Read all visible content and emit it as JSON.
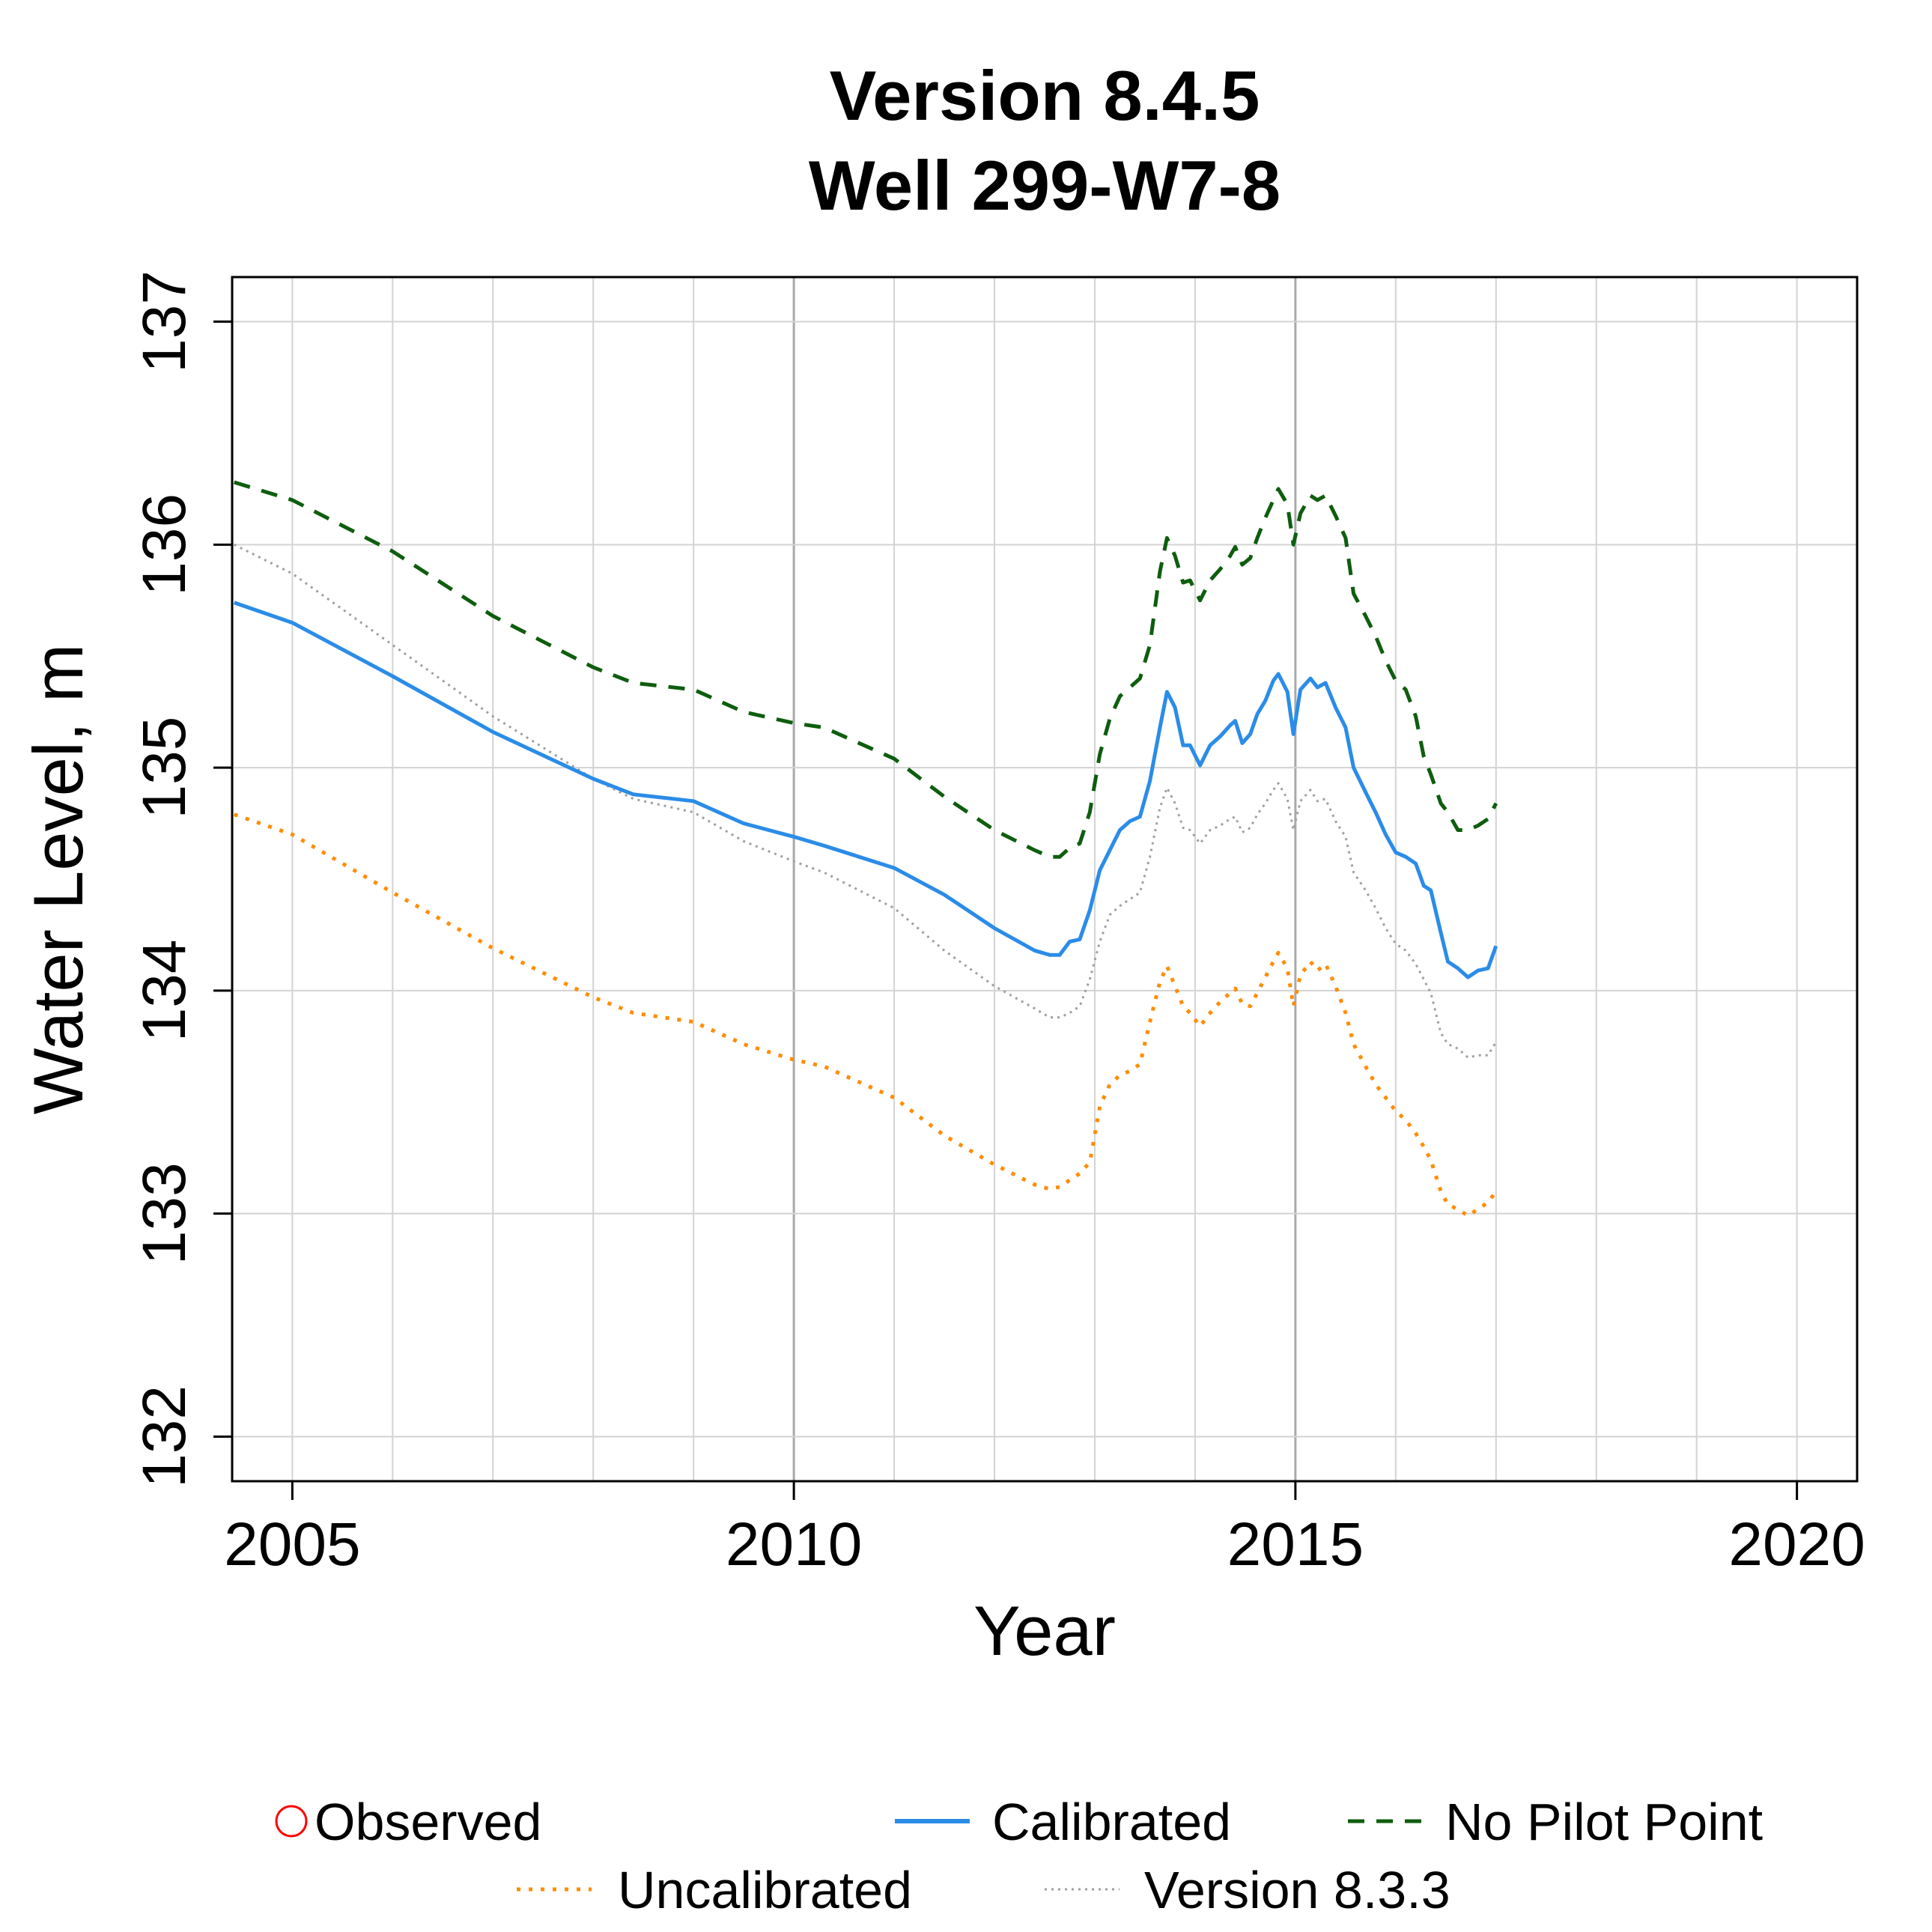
{
  "chart_data": {
    "type": "line",
    "title": "Version 8.4.5",
    "subtitle": "Well 299-W7-8",
    "xlabel": "Year",
    "ylabel": "Water Level, m",
    "xlim": [
      2004.4,
      2020.6
    ],
    "ylim": [
      131.8,
      137.2
    ],
    "x_ticks": [
      "2005",
      "2010",
      "2015",
      "2020"
    ],
    "y_ticks": [
      "132",
      "133",
      "134",
      "135",
      "136",
      "137"
    ],
    "grid": true,
    "legend_position": "bottom",
    "colors": {
      "observed": "#ff0000",
      "calibrated": "#2b8ce8",
      "no_pilot_point": "#0f5d0f",
      "uncalibrated": "#ff8c00",
      "version_833": "#a0a0a0",
      "grid": "#d3d3d3",
      "grid_major": "#a9a9a9"
    },
    "legend": {
      "observed": "Observed",
      "calibrated": "Calibrated",
      "no_pilot_point": "No Pilot Point",
      "uncalibrated": "Uncalibrated",
      "version_833": "Version 8.3.3"
    },
    "series": [
      {
        "key": "calibrated",
        "name": "Calibrated",
        "style": "solid",
        "points": [
          [
            2004.42,
            135.74
          ],
          [
            2005.0,
            135.65
          ],
          [
            2006.0,
            135.41
          ],
          [
            2007.0,
            135.16
          ],
          [
            2008.0,
            134.95
          ],
          [
            2008.4,
            134.88
          ],
          [
            2009.0,
            134.85
          ],
          [
            2009.5,
            134.75
          ],
          [
            2010.0,
            134.69
          ],
          [
            2010.3,
            134.65
          ],
          [
            2011.0,
            134.55
          ],
          [
            2011.5,
            134.43
          ],
          [
            2012.0,
            134.28
          ],
          [
            2012.4,
            134.18
          ],
          [
            2012.55,
            134.16
          ],
          [
            2012.65,
            134.16
          ],
          [
            2012.75,
            134.22
          ],
          [
            2012.85,
            134.23
          ],
          [
            2012.95,
            134.36
          ],
          [
            2013.05,
            134.54
          ],
          [
            2013.15,
            134.63
          ],
          [
            2013.25,
            134.72
          ],
          [
            2013.35,
            134.76
          ],
          [
            2013.45,
            134.78
          ],
          [
            2013.55,
            134.94
          ],
          [
            2013.65,
            135.18
          ],
          [
            2013.72,
            135.34
          ],
          [
            2013.8,
            135.27
          ],
          [
            2013.88,
            135.1
          ],
          [
            2013.95,
            135.1
          ],
          [
            2014.05,
            135.01
          ],
          [
            2014.15,
            135.1
          ],
          [
            2014.25,
            135.14
          ],
          [
            2014.35,
            135.19
          ],
          [
            2014.4,
            135.21
          ],
          [
            2014.47,
            135.11
          ],
          [
            2014.55,
            135.15
          ],
          [
            2014.62,
            135.24
          ],
          [
            2014.7,
            135.3
          ],
          [
            2014.78,
            135.39
          ],
          [
            2014.83,
            135.42
          ],
          [
            2014.92,
            135.34
          ],
          [
            2014.98,
            135.15
          ],
          [
            2015.05,
            135.35
          ],
          [
            2015.15,
            135.4
          ],
          [
            2015.22,
            135.36
          ],
          [
            2015.3,
            135.38
          ],
          [
            2015.4,
            135.27
          ],
          [
            2015.5,
            135.18
          ],
          [
            2015.58,
            135.0
          ],
          [
            2015.7,
            134.89
          ],
          [
            2015.8,
            134.8
          ],
          [
            2015.9,
            134.7
          ],
          [
            2016.0,
            134.62
          ],
          [
            2016.1,
            134.6
          ],
          [
            2016.2,
            134.57
          ],
          [
            2016.28,
            134.47
          ],
          [
            2016.35,
            134.45
          ],
          [
            2016.45,
            134.26
          ],
          [
            2016.52,
            134.13
          ],
          [
            2016.62,
            134.1
          ],
          [
            2016.72,
            134.06
          ],
          [
            2016.82,
            134.09
          ],
          [
            2016.92,
            134.1
          ],
          [
            2017.0,
            134.2
          ]
        ]
      },
      {
        "key": "no_pilot_point",
        "name": "No Pilot Point",
        "style": "dashed",
        "points": [
          [
            2004.42,
            136.28
          ],
          [
            2005.0,
            136.2
          ],
          [
            2006.0,
            135.97
          ],
          [
            2007.0,
            135.68
          ],
          [
            2008.0,
            135.45
          ],
          [
            2008.4,
            135.38
          ],
          [
            2009.0,
            135.35
          ],
          [
            2009.5,
            135.25
          ],
          [
            2010.0,
            135.2
          ],
          [
            2010.3,
            135.18
          ],
          [
            2011.0,
            135.04
          ],
          [
            2011.5,
            134.87
          ],
          [
            2012.0,
            134.72
          ],
          [
            2012.4,
            134.63
          ],
          [
            2012.55,
            134.6
          ],
          [
            2012.65,
            134.6
          ],
          [
            2012.75,
            134.64
          ],
          [
            2012.85,
            134.66
          ],
          [
            2012.95,
            134.8
          ],
          [
            2013.05,
            135.06
          ],
          [
            2013.15,
            135.22
          ],
          [
            2013.25,
            135.32
          ],
          [
            2013.35,
            135.36
          ],
          [
            2013.45,
            135.4
          ],
          [
            2013.55,
            135.55
          ],
          [
            2013.65,
            135.88
          ],
          [
            2013.72,
            136.03
          ],
          [
            2013.8,
            135.95
          ],
          [
            2013.88,
            135.83
          ],
          [
            2013.95,
            135.84
          ],
          [
            2014.05,
            135.75
          ],
          [
            2014.15,
            135.84
          ],
          [
            2014.25,
            135.89
          ],
          [
            2014.35,
            135.95
          ],
          [
            2014.4,
            135.99
          ],
          [
            2014.47,
            135.91
          ],
          [
            2014.55,
            135.94
          ],
          [
            2014.62,
            136.03
          ],
          [
            2014.7,
            136.12
          ],
          [
            2014.78,
            136.2
          ],
          [
            2014.83,
            136.25
          ],
          [
            2014.92,
            136.18
          ],
          [
            2014.98,
            136.0
          ],
          [
            2015.05,
            136.14
          ],
          [
            2015.15,
            136.22
          ],
          [
            2015.22,
            136.2
          ],
          [
            2015.3,
            136.22
          ],
          [
            2015.4,
            136.13
          ],
          [
            2015.5,
            136.03
          ],
          [
            2015.58,
            135.78
          ],
          [
            2015.7,
            135.68
          ],
          [
            2015.8,
            135.59
          ],
          [
            2015.9,
            135.48
          ],
          [
            2016.0,
            135.39
          ],
          [
            2016.1,
            135.35
          ],
          [
            2016.2,
            135.23
          ],
          [
            2016.28,
            135.05
          ],
          [
            2016.35,
            134.97
          ],
          [
            2016.45,
            134.84
          ],
          [
            2016.52,
            134.8
          ],
          [
            2016.62,
            134.72
          ],
          [
            2016.72,
            134.72
          ],
          [
            2016.82,
            134.74
          ],
          [
            2016.92,
            134.77
          ],
          [
            2017.0,
            134.84
          ]
        ]
      },
      {
        "key": "uncalibrated",
        "name": "Uncalibrated",
        "style": "dotted",
        "points": [
          [
            2004.42,
            134.79
          ],
          [
            2005.0,
            134.7
          ],
          [
            2006.0,
            134.44
          ],
          [
            2007.0,
            134.19
          ],
          [
            2008.0,
            133.97
          ],
          [
            2008.4,
            133.9
          ],
          [
            2009.0,
            133.86
          ],
          [
            2009.5,
            133.76
          ],
          [
            2010.0,
            133.69
          ],
          [
            2010.3,
            133.66
          ],
          [
            2011.0,
            133.52
          ],
          [
            2011.5,
            133.35
          ],
          [
            2012.0,
            133.22
          ],
          [
            2012.4,
            133.13
          ],
          [
            2012.55,
            133.11
          ],
          [
            2012.65,
            133.12
          ],
          [
            2012.75,
            133.15
          ],
          [
            2012.85,
            133.18
          ],
          [
            2012.95,
            133.23
          ],
          [
            2013.05,
            133.48
          ],
          [
            2013.15,
            133.58
          ],
          [
            2013.25,
            133.62
          ],
          [
            2013.35,
            133.64
          ],
          [
            2013.45,
            133.67
          ],
          [
            2013.55,
            133.86
          ],
          [
            2013.65,
            134.04
          ],
          [
            2013.72,
            134.11
          ],
          [
            2013.8,
            134.02
          ],
          [
            2013.88,
            133.93
          ],
          [
            2013.95,
            133.9
          ],
          [
            2014.05,
            133.84
          ],
          [
            2014.15,
            133.9
          ],
          [
            2014.25,
            133.95
          ],
          [
            2014.35,
            133.99
          ],
          [
            2014.4,
            134.01
          ],
          [
            2014.47,
            133.94
          ],
          [
            2014.55,
            133.93
          ],
          [
            2014.62,
            133.99
          ],
          [
            2014.7,
            134.06
          ],
          [
            2014.78,
            134.13
          ],
          [
            2014.83,
            134.17
          ],
          [
            2014.92,
            134.1
          ],
          [
            2014.98,
            133.93
          ],
          [
            2015.05,
            134.07
          ],
          [
            2015.15,
            134.13
          ],
          [
            2015.22,
            134.09
          ],
          [
            2015.3,
            134.12
          ],
          [
            2015.4,
            134.02
          ],
          [
            2015.5,
            133.9
          ],
          [
            2015.58,
            133.76
          ],
          [
            2015.7,
            133.66
          ],
          [
            2015.8,
            133.58
          ],
          [
            2015.9,
            133.52
          ],
          [
            2016.0,
            133.46
          ],
          [
            2016.1,
            133.42
          ],
          [
            2016.2,
            133.36
          ],
          [
            2016.28,
            133.3
          ],
          [
            2016.35,
            133.24
          ],
          [
            2016.45,
            133.1
          ],
          [
            2016.52,
            133.04
          ],
          [
            2016.62,
            133.02
          ],
          [
            2016.72,
            132.99
          ],
          [
            2016.82,
            133.02
          ],
          [
            2016.92,
            133.05
          ],
          [
            2017.0,
            133.1
          ]
        ]
      },
      {
        "key": "version_833",
        "name": "Version 8.3.3",
        "style": "dotted-fine",
        "points": [
          [
            2004.42,
            136.0
          ],
          [
            2005.0,
            135.87
          ],
          [
            2006.0,
            135.55
          ],
          [
            2007.0,
            135.23
          ],
          [
            2008.0,
            134.95
          ],
          [
            2008.4,
            134.86
          ],
          [
            2009.0,
            134.8
          ],
          [
            2009.5,
            134.67
          ],
          [
            2010.0,
            134.58
          ],
          [
            2010.3,
            134.53
          ],
          [
            2011.0,
            134.37
          ],
          [
            2011.5,
            134.18
          ],
          [
            2012.0,
            134.02
          ],
          [
            2012.4,
            133.92
          ],
          [
            2012.55,
            133.88
          ],
          [
            2012.65,
            133.88
          ],
          [
            2012.75,
            133.9
          ],
          [
            2012.85,
            133.93
          ],
          [
            2012.95,
            134.05
          ],
          [
            2013.05,
            134.22
          ],
          [
            2013.15,
            134.34
          ],
          [
            2013.25,
            134.38
          ],
          [
            2013.35,
            134.41
          ],
          [
            2013.45,
            134.44
          ],
          [
            2013.55,
            134.6
          ],
          [
            2013.65,
            134.82
          ],
          [
            2013.72,
            134.91
          ],
          [
            2013.8,
            134.84
          ],
          [
            2013.88,
            134.73
          ],
          [
            2013.95,
            134.72
          ],
          [
            2014.05,
            134.66
          ],
          [
            2014.15,
            134.72
          ],
          [
            2014.25,
            134.74
          ],
          [
            2014.35,
            134.77
          ],
          [
            2014.4,
            134.78
          ],
          [
            2014.47,
            134.71
          ],
          [
            2014.55,
            134.73
          ],
          [
            2014.62,
            134.79
          ],
          [
            2014.7,
            134.84
          ],
          [
            2014.78,
            134.9
          ],
          [
            2014.83,
            134.93
          ],
          [
            2014.92,
            134.86
          ],
          [
            2014.98,
            134.72
          ],
          [
            2015.05,
            134.85
          ],
          [
            2015.15,
            134.9
          ],
          [
            2015.22,
            134.85
          ],
          [
            2015.3,
            134.86
          ],
          [
            2015.4,
            134.76
          ],
          [
            2015.5,
            134.69
          ],
          [
            2015.58,
            134.53
          ],
          [
            2015.7,
            134.45
          ],
          [
            2015.8,
            134.37
          ],
          [
            2015.9,
            134.28
          ],
          [
            2016.0,
            134.21
          ],
          [
            2016.1,
            134.18
          ],
          [
            2016.2,
            134.12
          ],
          [
            2016.28,
            134.05
          ],
          [
            2016.35,
            133.99
          ],
          [
            2016.45,
            133.81
          ],
          [
            2016.52,
            133.76
          ],
          [
            2016.62,
            133.74
          ],
          [
            2016.72,
            133.7
          ],
          [
            2016.82,
            133.71
          ],
          [
            2016.92,
            133.71
          ],
          [
            2017.0,
            133.77
          ]
        ]
      }
    ]
  }
}
